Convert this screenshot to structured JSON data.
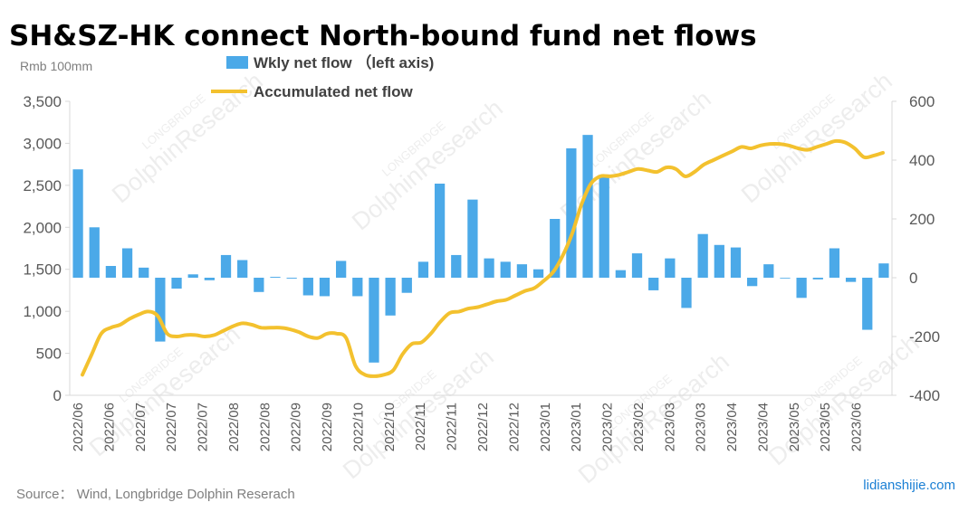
{
  "title": "SH&SZ-HK connect North-bound fund net flows",
  "unit_label": "Rmb 100mm",
  "source": "Source：  Wind, Longbridge Dolphin Reserach",
  "watermark_site": "lidianshijie.com",
  "watermark_brand": "LONGBRIDGE",
  "watermark_text": "DolphinResearch",
  "colors": {
    "bar": "#4ba9e8",
    "line": "#f3c12e",
    "axis": "#d9d9d9",
    "text": "#595959"
  },
  "chart_data": {
    "type": "bar+line",
    "legend": "top-left",
    "left_axis": {
      "ticks": [
        "0",
        "500",
        "1,000",
        "1,500",
        "2,000",
        "2,500",
        "3,000",
        "3,500"
      ],
      "min": 0,
      "max": 3500
    },
    "right_axis": {
      "ticks": [
        "-400",
        "-200",
        "0",
        "200",
        "400",
        "600"
      ],
      "min": -400,
      "max": 600
    },
    "bar_baseline": 1400,
    "x_tick_labels": [
      "2022/06",
      "2022/06",
      "2022/07",
      "2022/07",
      "2022/07",
      "2022/08",
      "2022/08",
      "2022/09",
      "2022/09",
      "2022/10",
      "2022/10",
      "2022/11",
      "2022/11",
      "2022/12",
      "2022/12",
      "2023/01",
      "2023/01",
      "2023/02",
      "2023/02",
      "2023/03",
      "2023/03",
      "2023/04",
      "2023/04",
      "2023/05",
      "2023/05",
      "2023/06"
    ],
    "series": [
      {
        "name": "Wkly net flow （left axis)",
        "kind": "bar",
        "axis": "left",
        "values": [
          2690,
          2000,
          1540,
          1750,
          1520,
          640,
          1270,
          1440,
          1370,
          1670,
          1610,
          1230,
          1410,
          1390,
          1190,
          1180,
          1600,
          1180,
          390,
          950,
          1220,
          1590,
          2520,
          1670,
          2330,
          1630,
          1590,
          1560,
          1500,
          2100,
          2940,
          3100,
          2600,
          1490,
          1690,
          1250,
          1630,
          1040,
          1920,
          1790,
          1760,
          1300,
          1560,
          1400,
          1160,
          1380,
          1750,
          1350,
          780,
          1570
        ]
      },
      {
        "name": "Accumulated net flow",
        "kind": "line",
        "axis": "right",
        "values": [
          -330,
          -260,
          -190,
          -170,
          -160,
          -140,
          -125,
          -115,
          -130,
          -190,
          -200,
          -195,
          -195,
          -200,
          -195,
          -180,
          -165,
          -155,
          -160,
          -170,
          -170,
          -170,
          -175,
          -185,
          -200,
          -205,
          -190,
          -190,
          -205,
          -300,
          -330,
          -335,
          -330,
          -315,
          -260,
          -225,
          -220,
          -190,
          -150,
          -120,
          -115,
          -105,
          -100,
          -90,
          -80,
          -75,
          -60,
          -45,
          -35,
          -10,
          20,
          75,
          150,
          250,
          320,
          345,
          345,
          350,
          360,
          370,
          365,
          360,
          375,
          370,
          345,
          360,
          385,
          400,
          415,
          430,
          445,
          440,
          450,
          455,
          455,
          450,
          440,
          435,
          445,
          455,
          465,
          460,
          440,
          410,
          415,
          425
        ]
      }
    ]
  }
}
